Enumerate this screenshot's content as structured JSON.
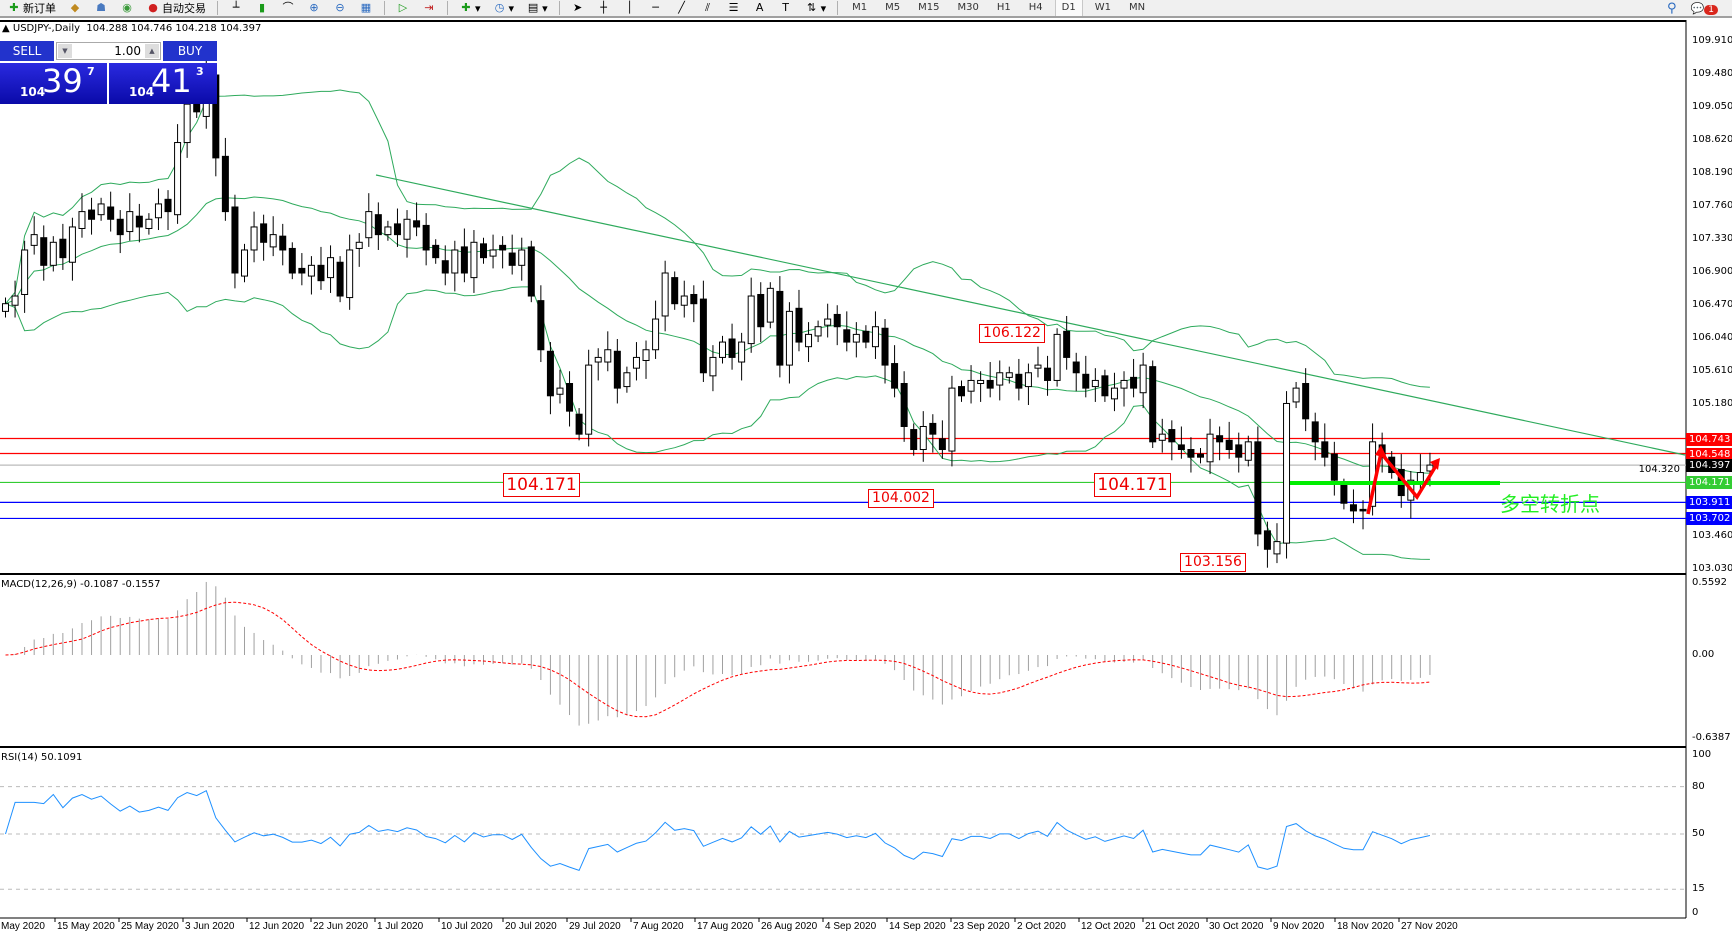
{
  "toolbar": {
    "new_order_label": "新订单",
    "auto_trading_label": "自动交易",
    "timeframes": [
      "M1",
      "M5",
      "M15",
      "M30",
      "H1",
      "H4",
      "D1",
      "W1",
      "MN"
    ],
    "active_timeframe": "D1",
    "notification_count": "1"
  },
  "chart": {
    "header": "USDJPY-,Daily  104.288 104.746 104.218 104.397",
    "symbol": "USDJPY-",
    "period": "Daily"
  },
  "one_click": {
    "sell_label": "SELL",
    "buy_label": "BUY",
    "lot": "1.00",
    "sell_price": {
      "prefix": "104",
      "big": "39",
      "sup": "7"
    },
    "buy_price": {
      "prefix": "104",
      "big": "41",
      "sup": "3"
    }
  },
  "price_axis": {
    "labels": [
      "109.910",
      "109.480",
      "109.050",
      "108.620",
      "108.190",
      "107.760",
      "107.330",
      "106.900",
      "106.470",
      "106.040",
      "105.610",
      "105.180",
      "104.320",
      "103.460",
      "103.030"
    ],
    "levels": [
      {
        "value": "104.743",
        "color": "#ff0000"
      },
      {
        "value": "104.548",
        "color": "#ff0000"
      },
      {
        "value": "104.397",
        "color": "#000000"
      },
      {
        "value": "104.171",
        "color": "#33cc33"
      },
      {
        "value": "103.911",
        "color": "#0000ff"
      },
      {
        "value": "103.702",
        "color": "#0000ff"
      }
    ]
  },
  "annotations": {
    "low1": "104.171",
    "low2": "104.002",
    "low3": "104.171",
    "high1": "106.122",
    "low4": "103.156",
    "turning_point": "多空转折点"
  },
  "macd": {
    "label": "MACD(12,26,9) -0.1087 -0.1557",
    "axis": [
      "0.5592",
      "0.00",
      "-0.6387"
    ]
  },
  "rsi": {
    "label": "RSI(14) 50.1091",
    "axis": [
      "100",
      "80",
      "50",
      "15",
      "0"
    ],
    "levels": [
      80,
      50,
      15
    ]
  },
  "dates": [
    "May 2020",
    "15 May 2020",
    "25 May 2020",
    "3 Jun 2020",
    "12 Jun 2020",
    "22 Jun 2020",
    "1 Jul 2020",
    "10 Jul 2020",
    "20 Jul 2020",
    "29 Jul 2020",
    "7 Aug 2020",
    "17 Aug 2020",
    "26 Aug 2020",
    "4 Sep 2020",
    "14 Sep 2020",
    "23 Sep 2020",
    "2 Oct 2020",
    "12 Oct 2020",
    "21 Oct 2020",
    "30 Oct 2020",
    "9 Nov 2020",
    "18 Nov 2020",
    "27 Nov 2020"
  ],
  "colors": {
    "bands": "#2eaa5c",
    "trendline": "#2eaa5c",
    "macd_signal": "#ff0000",
    "macd_hist": "#a0a0a0",
    "rsi": "#1e90ff",
    "zigzag": "#ff0000",
    "support": "#00ee00"
  },
  "chart_data": {
    "type": "candlestick",
    "closes": [
      106.5,
      106.6,
      107.2,
      107.4,
      107.0,
      107.3,
      107.1,
      107.5,
      107.7,
      107.6,
      107.8,
      107.6,
      107.4,
      107.7,
      107.5,
      107.6,
      107.8,
      107.7,
      108.6,
      109.1,
      109.0,
      109.5,
      108.4,
      107.7,
      106.9,
      107.2,
      107.5,
      107.3,
      107.4,
      107.2,
      106.9,
      106.9,
      107.0,
      106.8,
      107.1,
      106.6,
      107.2,
      107.3,
      107.7,
      107.4,
      107.5,
      107.4,
      107.6,
      107.5,
      107.2,
      107.1,
      106.9,
      107.2,
      106.9,
      107.3,
      107.1,
      107.2,
      107.2,
      107.0,
      107.2,
      106.6,
      105.9,
      105.3,
      105.4,
      105.1,
      104.8,
      105.7,
      105.8,
      105.9,
      105.4,
      105.6,
      105.8,
      105.9,
      106.3,
      106.9,
      106.5,
      106.6,
      106.5,
      105.6,
      105.8,
      106.0,
      105.8,
      106.0,
      106.6,
      106.2,
      106.7,
      105.7,
      106.4,
      106.0,
      106.1,
      106.2,
      106.3,
      106.2,
      106.0,
      106.1,
      106.0,
      106.2,
      105.7,
      105.4,
      104.9,
      104.6,
      104.9,
      104.8,
      104.6,
      105.4,
      105.3,
      105.5,
      105.5,
      105.4,
      105.6,
      105.6,
      105.4,
      105.6,
      105.7,
      105.5,
      106.1,
      105.8,
      105.6,
      105.4,
      105.5,
      105.3,
      105.4,
      105.5,
      105.4,
      105.7,
      104.7,
      104.8,
      104.7,
      104.6,
      104.5,
      104.5,
      104.8,
      104.7,
      104.6,
      104.5,
      104.7,
      103.5,
      103.3,
      103.4,
      105.2,
      105.4,
      105.0,
      104.7,
      104.5,
      104.2,
      103.9,
      103.8,
      103.8,
      104.7,
      104.5,
      104.3,
      104.0,
      104.2,
      104.3,
      104.397
    ],
    "ylim": [
      103.03,
      109.91
    ],
    "indicators": [
      "Bollinger Bands",
      "MACD(12,26,9)",
      "RSI(14)"
    ]
  }
}
